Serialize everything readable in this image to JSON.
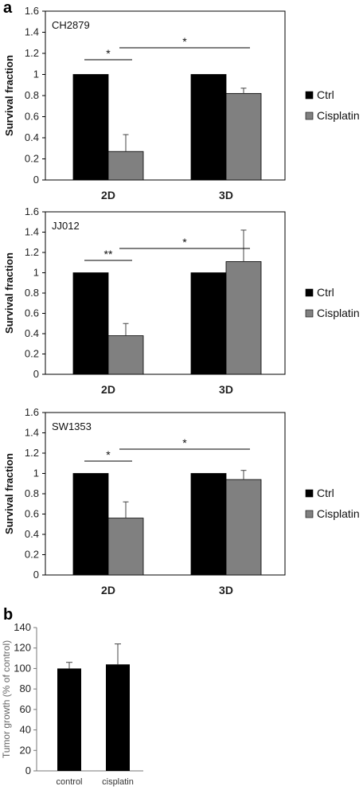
{
  "panel_labels": [
    "a",
    "b"
  ],
  "chart_data": [
    {
      "type": "bar",
      "title": "CH2879",
      "xlabel": "",
      "ylabel": "Survival fraction",
      "ylim": [
        0,
        1.6
      ],
      "yticks": [
        "0",
        "0.2",
        "0.4",
        "0.6",
        "0.8",
        "1",
        "1.2",
        "1.4",
        "1.6"
      ],
      "categories": [
        "2D",
        "3D"
      ],
      "series": [
        {
          "name": "Ctrl",
          "values": [
            1.0,
            1.0
          ],
          "errors": [
            0,
            0
          ],
          "color": "#000000"
        },
        {
          "name": "Cisplatin",
          "values": [
            0.27,
            0.82
          ],
          "errors": [
            0.16,
            0.05
          ],
          "color": "#808080"
        }
      ],
      "significance": [
        {
          "label": "*",
          "from": "2D Ctrl",
          "to": "2D Cisplatin"
        },
        {
          "label": "*",
          "from": "2D Cisplatin",
          "to": "3D Cisplatin"
        }
      ],
      "legend_position": "right",
      "grid": false
    },
    {
      "type": "bar",
      "title": "JJ012",
      "xlabel": "",
      "ylabel": "Survival fraction",
      "ylim": [
        0,
        1.6
      ],
      "yticks": [
        "0",
        "0.2",
        "0.4",
        "0.6",
        "0.8",
        "1",
        "1.2",
        "1.4",
        "1.6"
      ],
      "categories": [
        "2D",
        "3D"
      ],
      "series": [
        {
          "name": "Ctrl",
          "values": [
            1.0,
            1.0
          ],
          "errors": [
            0,
            0
          ],
          "color": "#000000"
        },
        {
          "name": "Cisplatin",
          "values": [
            0.38,
            1.11
          ],
          "errors": [
            0.12,
            0.31
          ],
          "color": "#808080"
        }
      ],
      "significance": [
        {
          "label": "**",
          "from": "2D Ctrl",
          "to": "2D Cisplatin"
        },
        {
          "label": "*",
          "from": "2D Cisplatin",
          "to": "3D Cisplatin"
        }
      ],
      "legend_position": "right",
      "grid": false
    },
    {
      "type": "bar",
      "title": "SW1353",
      "xlabel": "",
      "ylabel": "Survival fraction",
      "ylim": [
        0,
        1.6
      ],
      "yticks": [
        "0",
        "0.2",
        "0.4",
        "0.6",
        "0.8",
        "1",
        "1.2",
        "1.4",
        "1.6"
      ],
      "categories": [
        "2D",
        "3D"
      ],
      "series": [
        {
          "name": "Ctrl",
          "values": [
            1.0,
            1.0
          ],
          "errors": [
            0,
            0
          ],
          "color": "#000000"
        },
        {
          "name": "Cisplatin",
          "values": [
            0.56,
            0.94
          ],
          "errors": [
            0.16,
            0.09
          ],
          "color": "#808080"
        }
      ],
      "significance": [
        {
          "label": "*",
          "from": "2D Ctrl",
          "to": "2D Cisplatin"
        },
        {
          "label": "*",
          "from": "2D Cisplatin",
          "to": "3D Cisplatin"
        }
      ],
      "legend_position": "right",
      "grid": false
    },
    {
      "type": "bar",
      "title": "",
      "xlabel": "",
      "ylabel": "Tumor growth  (% of control)",
      "ylim": [
        0,
        140
      ],
      "yticks": [
        "0",
        "20",
        "40",
        "60",
        "80",
        "100",
        "120",
        "140"
      ],
      "categories": [
        "control",
        "cisplatin"
      ],
      "series": [
        {
          "values": [
            100,
            104
          ],
          "errors": [
            6,
            20
          ],
          "color": "#000000"
        }
      ],
      "grid": false
    }
  ]
}
